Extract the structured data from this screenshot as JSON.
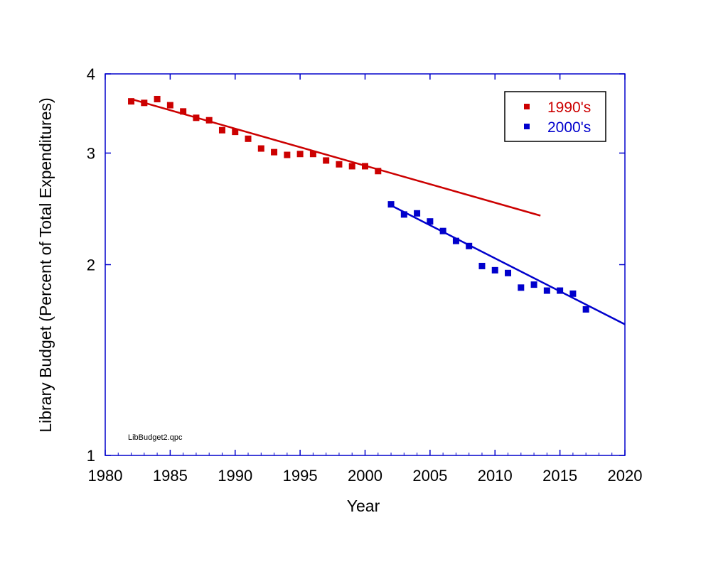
{
  "chart_data": {
    "type": "scatter",
    "y_scale": "log",
    "title": "",
    "xlabel": "Year",
    "ylabel": "Library Budget (Percent of Total Expenditures)",
    "xlim": [
      1980,
      2020
    ],
    "ylim": [
      1,
      4
    ],
    "x_ticks": [
      1980,
      1985,
      1990,
      1995,
      2000,
      2005,
      2010,
      2015,
      2020
    ],
    "y_ticks": [
      1,
      2,
      3,
      4
    ],
    "x_tick_labels": [
      "1980",
      "1985",
      "1990",
      "1995",
      "2000",
      "2005",
      "2010",
      "2015",
      "2020"
    ],
    "y_tick_labels": [
      "1",
      "2",
      "3",
      "4"
    ],
    "legend_position": "top-right",
    "source_note": "LibBudget2.qpc",
    "series": [
      {
        "name": "1990's",
        "color": "#cc0000",
        "marker": "square",
        "x": [
          1982,
          1983,
          1984,
          1985,
          1986,
          1987,
          1988,
          1989,
          1990,
          1991,
          1992,
          1993,
          1994,
          1995,
          1996,
          1997,
          1998,
          1999,
          2000,
          2001
        ],
        "y": [
          3.62,
          3.6,
          3.65,
          3.57,
          3.49,
          3.41,
          3.38,
          3.26,
          3.24,
          3.16,
          3.05,
          3.01,
          2.98,
          2.99,
          2.99,
          2.92,
          2.88,
          2.86,
          2.86,
          2.81
        ],
        "fit_line": {
          "x": [
            1982,
            2013.5
          ],
          "y": [
            3.65,
            2.39
          ]
        }
      },
      {
        "name": "2000's",
        "color": "#0000cc",
        "marker": "square",
        "x": [
          2002,
          2003,
          2004,
          2005,
          2006,
          2007,
          2008,
          2009,
          2010,
          2011,
          2012,
          2013,
          2014,
          2015,
          2016,
          2017
        ],
        "y": [
          2.49,
          2.4,
          2.41,
          2.34,
          2.26,
          2.18,
          2.14,
          1.99,
          1.96,
          1.94,
          1.84,
          1.86,
          1.82,
          1.82,
          1.8,
          1.7
        ],
        "fit_line": {
          "x": [
            2002,
            2020
          ],
          "y": [
            2.48,
            1.61
          ]
        }
      }
    ]
  }
}
